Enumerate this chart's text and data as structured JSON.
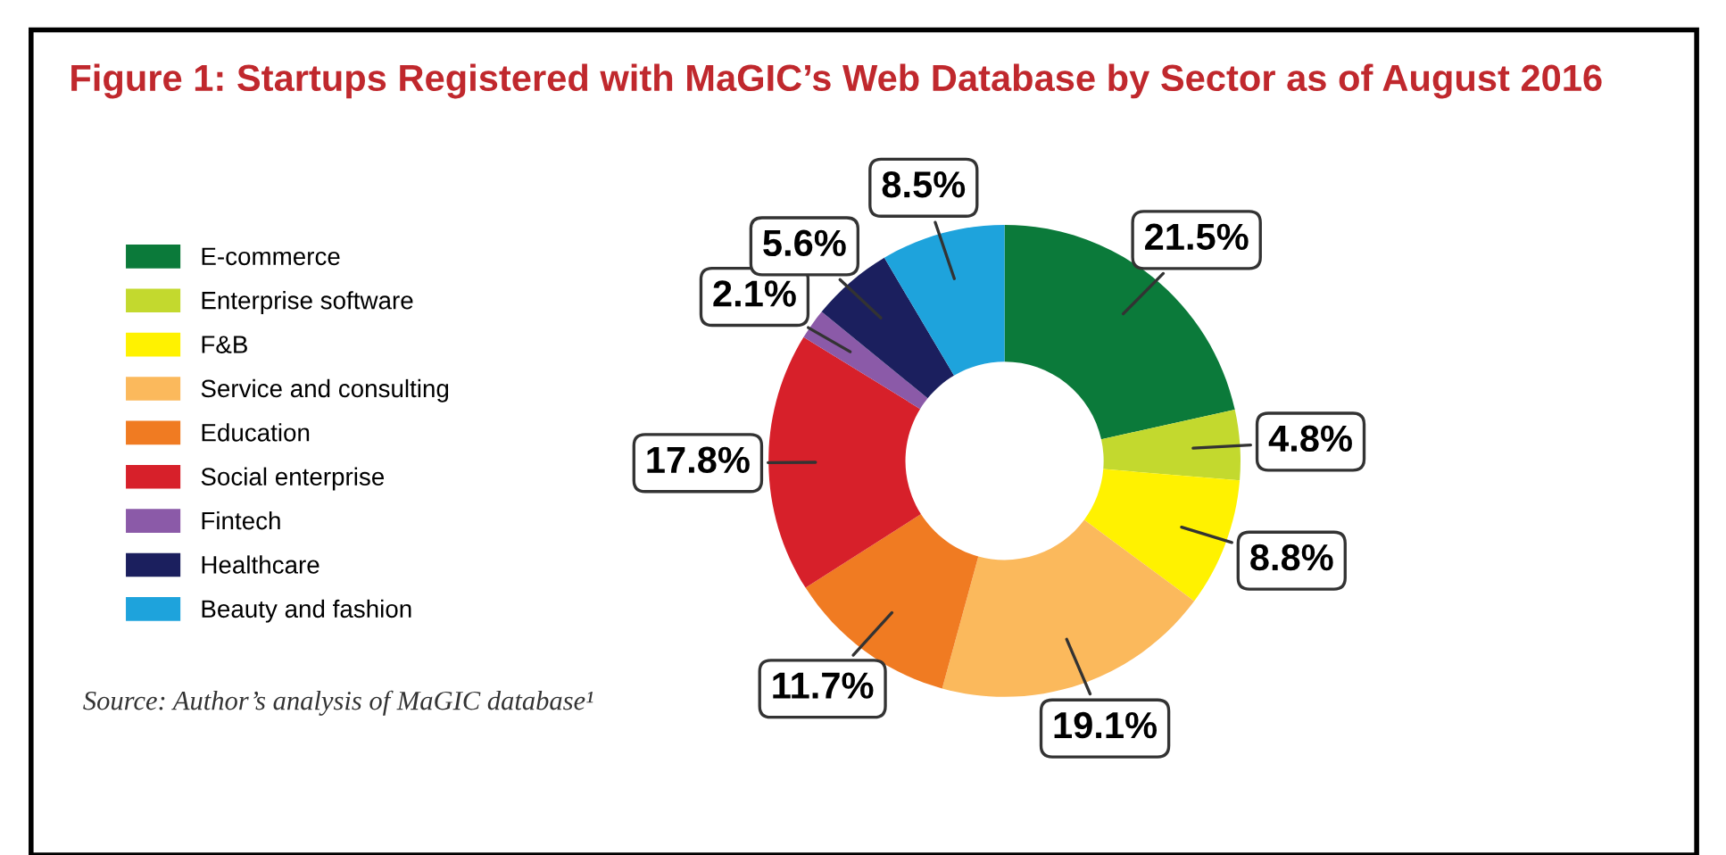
{
  "chart_data": {
    "type": "donut",
    "title": "Figure 1: Startups Registered with MaGIC’s Web Database by Sector as of August 2016",
    "categories": [
      "E-commerce",
      "Enterprise software",
      "F&B",
      "Service and consulting",
      "Education",
      "Social enterprise",
      "Fintech",
      "Healthcare",
      "Beauty and fashion"
    ],
    "values": [
      21.5,
      4.8,
      8.8,
      19.1,
      11.7,
      17.8,
      2.1,
      5.6,
      8.5
    ],
    "value_labels": [
      "21.5%",
      "4.8%",
      "8.8%",
      "19.1%",
      "11.7%",
      "17.8%",
      "2.1%",
      "5.6%",
      "8.5%"
    ],
    "colors": [
      "#0b7a3a",
      "#c3d92e",
      "#fff200",
      "#fbb95c",
      "#f07b22",
      "#d7202a",
      "#8b5aa8",
      "#1b1f5e",
      "#1ea3dc"
    ],
    "legend": "left",
    "annotations": [
      "Source: Author’s analysis of MaGIC database¹"
    ]
  }
}
